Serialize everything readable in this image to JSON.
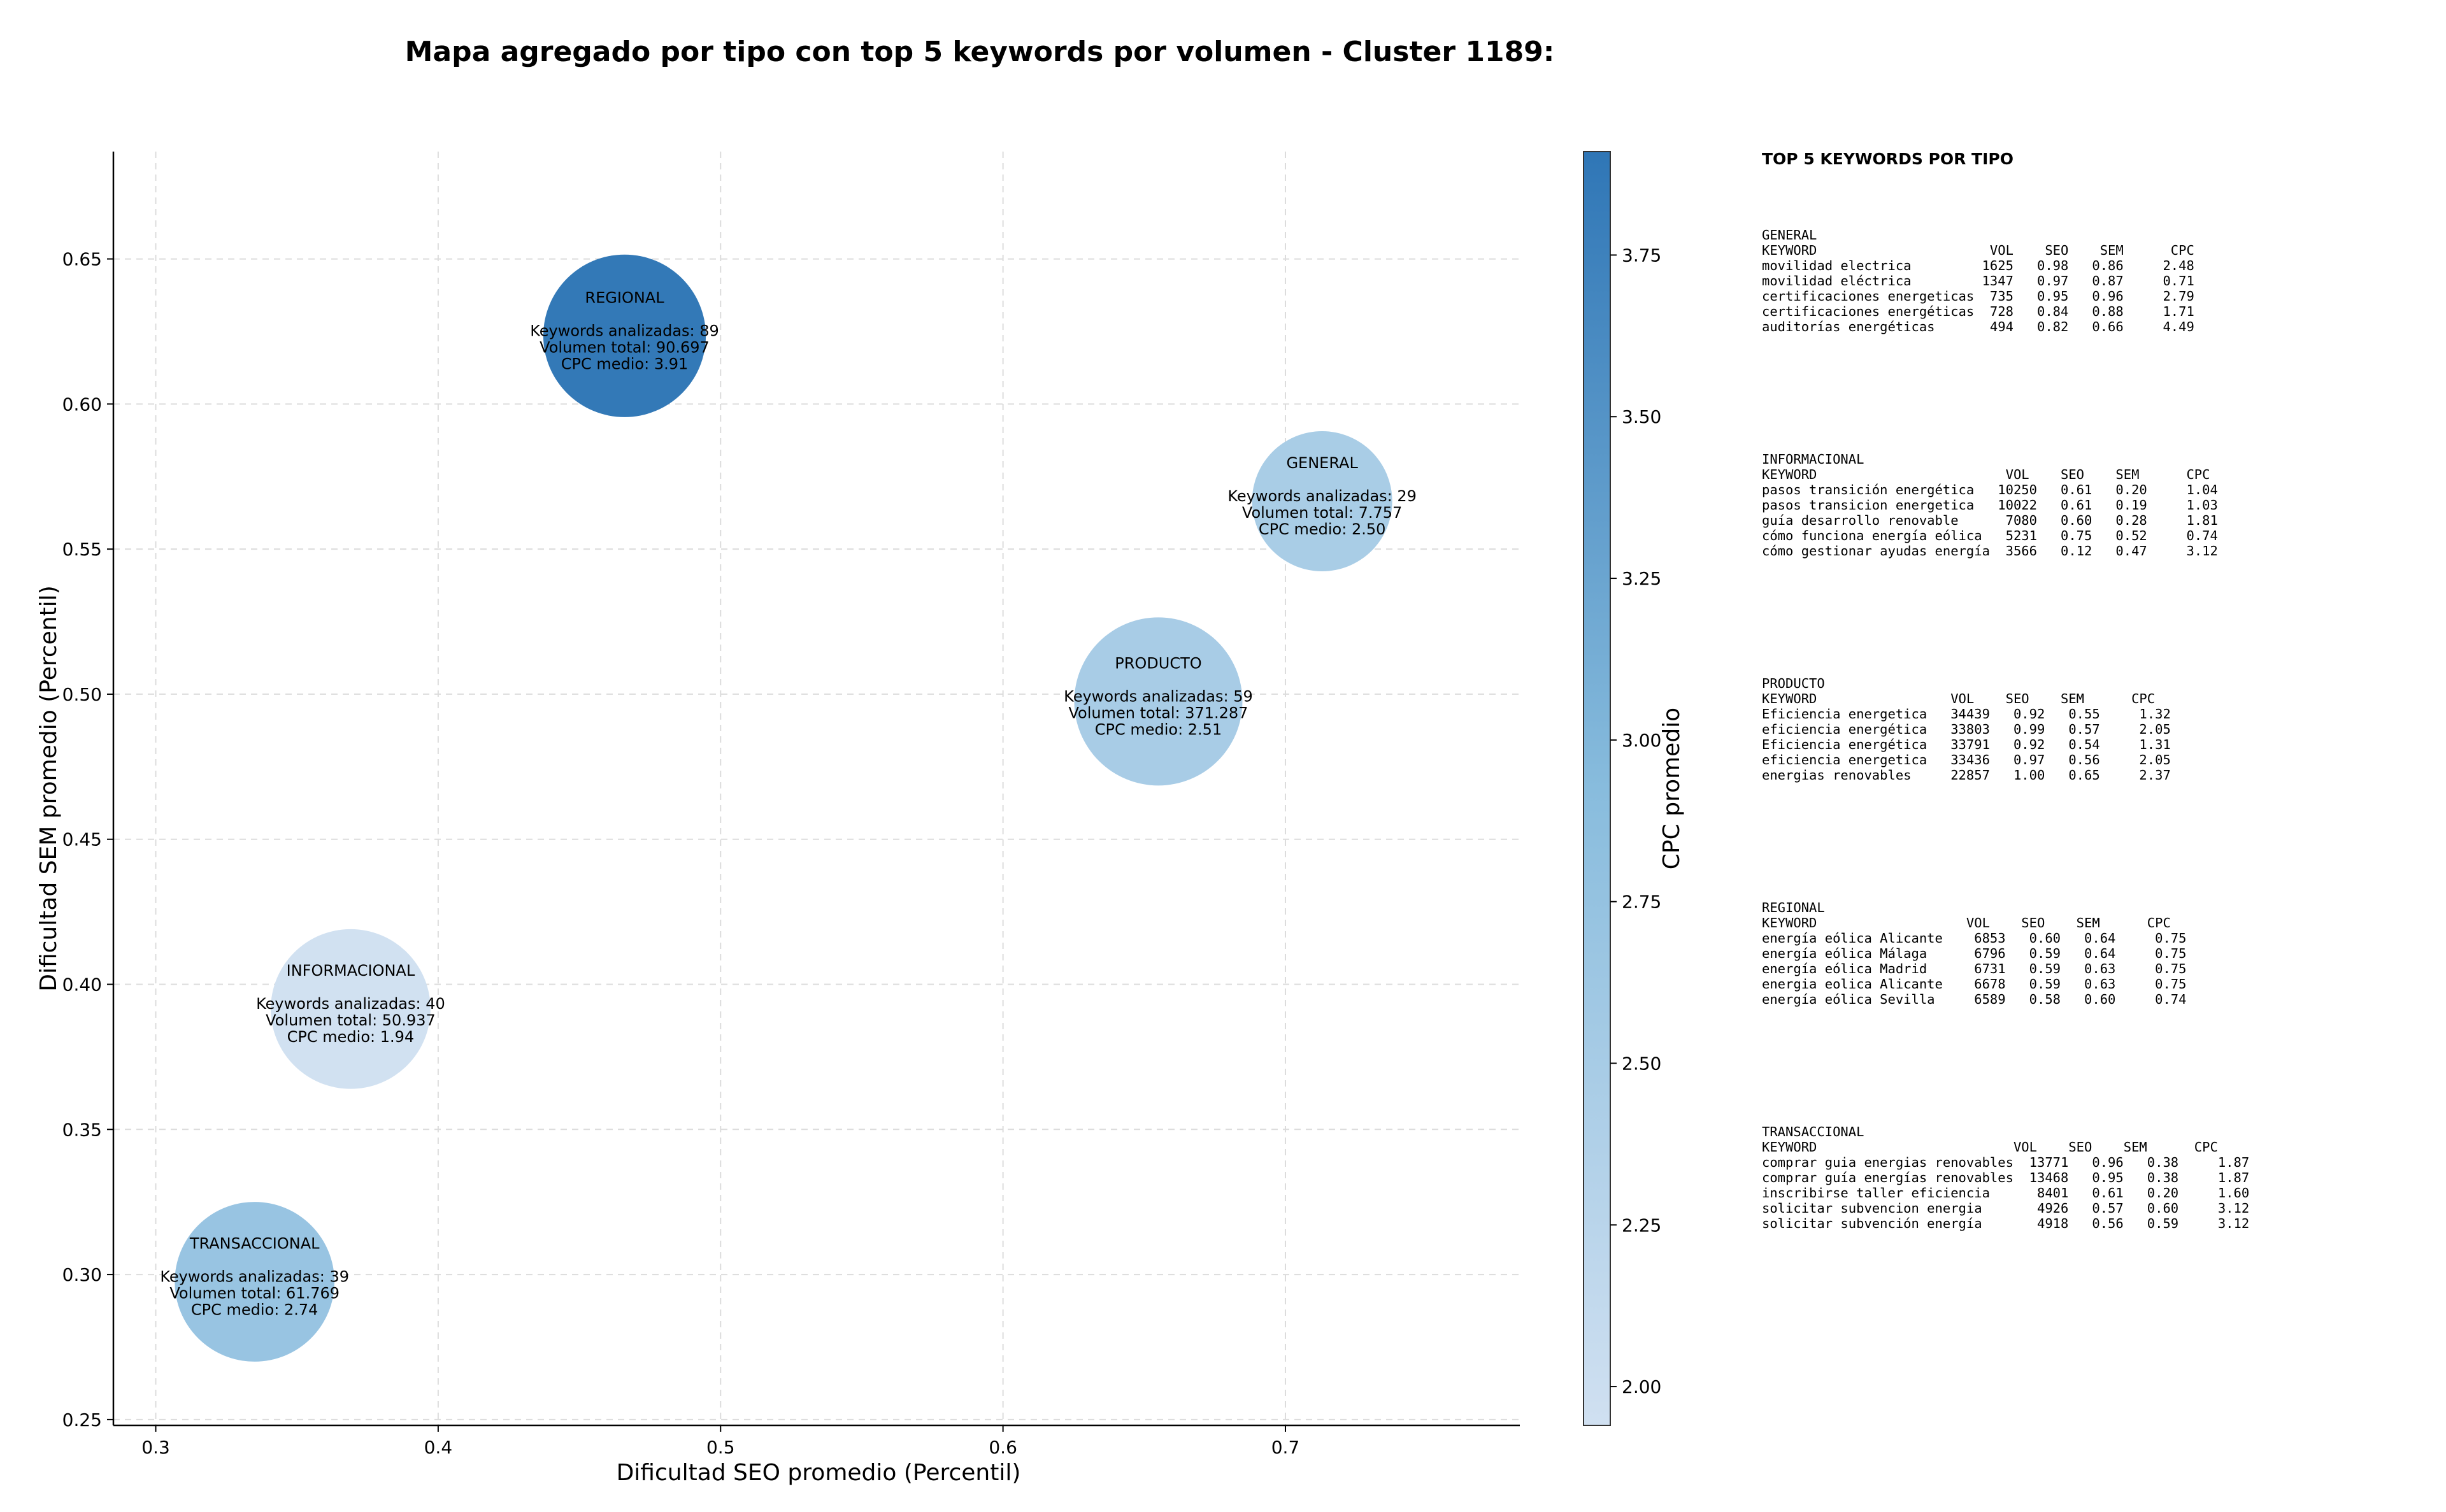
{
  "figure": {
    "title": "Mapa agregado por tipo con top 5 keywords por volumen - Cluster 1189:"
  },
  "chart_data": {
    "type": "scatter",
    "subtype": "bubble",
    "title": "Mapa agregado por tipo con top 5 keywords por volumen - Cluster 1189:",
    "xlabel": "Dificultad SEO promedio (Percentil)",
    "ylabel": "Dificultad SEM promedio (Percentil)",
    "xlim": [
      0.285,
      0.783
    ],
    "ylim": [
      0.248,
      0.687
    ],
    "xticks": [
      0.3,
      0.4,
      0.5,
      0.6,
      0.7
    ],
    "xtick_labels": [
      "0.3",
      "0.4",
      "0.5",
      "0.6",
      "0.7"
    ],
    "yticks": [
      0.25,
      0.3,
      0.35,
      0.4,
      0.45,
      0.5,
      0.55,
      0.6,
      0.65
    ],
    "ytick_labels": [
      "0.25",
      "0.30",
      "0.35",
      "0.40",
      "0.45",
      "0.50",
      "0.55",
      "0.60",
      "0.65"
    ],
    "grid": true,
    "color_label": "CPC promedio",
    "color_range": [
      1.94,
      3.91
    ],
    "colorbar_ticks": [
      2.0,
      2.25,
      2.5,
      2.75,
      3.0,
      3.25,
      3.5,
      3.75
    ],
    "colorbar_tick_labels": [
      "2.00",
      "2.25",
      "2.50",
      "2.75",
      "3.00",
      "3.25",
      "3.50",
      "3.75"
    ],
    "colormap": {
      "low": "#d0e0f1",
      "mid": "#88bcdd",
      "high": "#2f76b6"
    },
    "points": [
      {
        "name": "REGIONAL",
        "x": 0.466,
        "y": 0.6235,
        "bubble_value": 0.29,
        "keywords_label": "Keywords analizadas: 89",
        "volume_label": "Volumen total: 90.697",
        "cpc_label": "CPC medio: 3.91",
        "cpc": 3.91
      },
      {
        "name": "GENERAL",
        "x": 0.713,
        "y": 0.5665,
        "bubble_value": 0.25,
        "keywords_label": "Keywords analizadas: 29",
        "volume_label": "Volumen total: 7.757",
        "cpc_label": "CPC medio: 2.50",
        "cpc": 2.5
      },
      {
        "name": "PRODUCTO",
        "x": 0.655,
        "y": 0.4975,
        "bubble_value": 0.3,
        "keywords_label": "Keywords analizadas: 59",
        "volume_label": "Volumen total: 371.287",
        "cpc_label": "CPC medio: 2.51",
        "cpc": 2.51
      },
      {
        "name": "INFORMACIONAL",
        "x": 0.369,
        "y": 0.3915,
        "bubble_value": 0.285,
        "keywords_label": "Keywords analizadas: 40",
        "volume_label": "Volumen total: 50.937",
        "cpc_label": "CPC medio: 1.94",
        "cpc": 1.94
      },
      {
        "name": "TRANSACCIONAL",
        "x": 0.335,
        "y": 0.2975,
        "bubble_value": 0.285,
        "keywords_label": "Keywords analizadas: 39",
        "volume_label": "Volumen total: 61.769",
        "cpc_label": "CPC medio: 2.74",
        "cpc": 2.74
      }
    ]
  },
  "keywords_panel": {
    "heading": "TOP 5 KEYWORDS POR TIPO",
    "blocks": [
      {
        "type": "GENERAL",
        "header": "KEYWORD                      VOL    SEO    SEM      CPC",
        "rows": [
          "movilidad electrica         1625   0.98   0.86     2.48",
          "movilidad eléctrica         1347   0.97   0.87     0.71",
          "certificaciones energeticas  735   0.95   0.96     2.79",
          "certificaciones energéticas  728   0.84   0.88     1.71",
          "auditorías energéticas       494   0.82   0.66     4.49"
        ]
      },
      {
        "type": "INFORMACIONAL",
        "header": "KEYWORD                        VOL    SEO    SEM      CPC",
        "rows": [
          "pasos transición energética   10250   0.61   0.20     1.04",
          "pasos transicion energetica   10022   0.61   0.19     1.03",
          "guía desarrollo renovable      7080   0.60   0.28     1.81",
          "cómo funciona energía eólica   5231   0.75   0.52     0.74",
          "cómo gestionar ayudas energía  3566   0.12   0.47     3.12"
        ]
      },
      {
        "type": "PRODUCTO",
        "header": "KEYWORD                 VOL    SEO    SEM      CPC",
        "rows": [
          "Eficiencia energetica   34439   0.92   0.55     1.32",
          "eficiencia energética   33803   0.99   0.57     2.05",
          "Eficiencia energética   33791   0.92   0.54     1.31",
          "eficiencia energetica   33436   0.97   0.56     2.05",
          "energias renovables     22857   1.00   0.65     2.37"
        ]
      },
      {
        "type": "REGIONAL",
        "header": "KEYWORD                   VOL    SEO    SEM      CPC",
        "rows": [
          "energía eólica Alicante    6853   0.60   0.64     0.75",
          "energía eólica Málaga      6796   0.59   0.64     0.75",
          "energía eólica Madrid      6731   0.59   0.63     0.75",
          "energia eolica Alicante    6678   0.59   0.63     0.75",
          "energía eólica Sevilla     6589   0.58   0.60     0.74"
        ]
      },
      {
        "type": "TRANSACCIONAL",
        "header": "KEYWORD                         VOL    SEO    SEM      CPC",
        "rows": [
          "comprar guia energias renovables  13771   0.96   0.38     1.87",
          "comprar guía energías renovables  13468   0.95   0.38     1.87",
          "inscribirse taller eficiencia      8401   0.61   0.20     1.60",
          "solicitar subvencion energia       4926   0.57   0.60     3.12",
          "solicitar subvención energía       4918   0.56   0.59     3.12"
        ]
      }
    ]
  }
}
